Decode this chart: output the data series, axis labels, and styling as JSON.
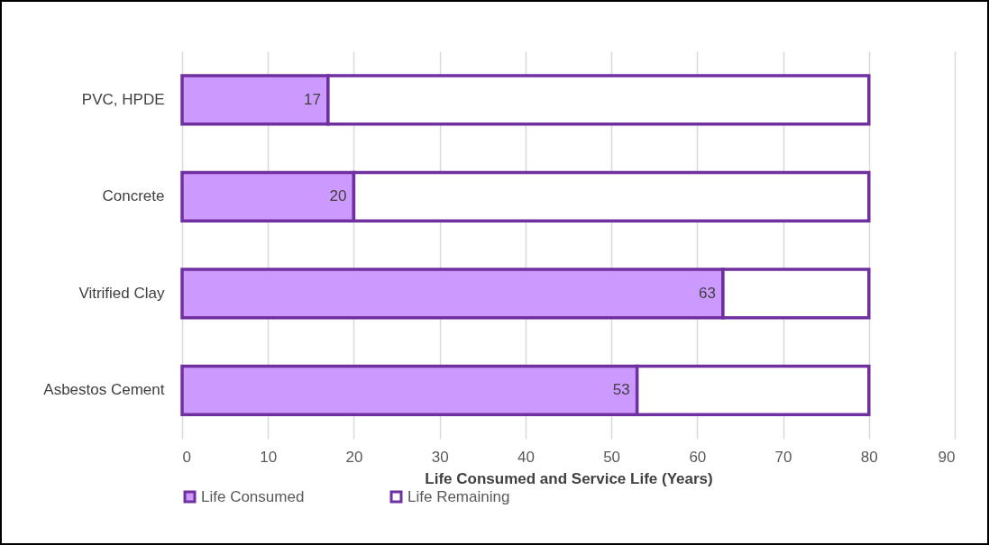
{
  "chart_data": {
    "type": "bar",
    "orientation": "horizontal",
    "stacked": true,
    "xlabel": "Life Consumed and Service Life (Years)",
    "categories": [
      "PVC, HPDE",
      "Concrete",
      "Vitrified Clay",
      "Asbestos Cement"
    ],
    "series": [
      {
        "name": "Life Consumed",
        "color": "#cc99ff",
        "values": [
          17,
          20,
          63,
          53
        ],
        "value_labels": [
          "17",
          "20",
          "63",
          "53"
        ]
      },
      {
        "name": "Life Remaining",
        "color": "#ffffff",
        "values": [
          63,
          60,
          17,
          27
        ]
      }
    ],
    "xlim": [
      0,
      90
    ],
    "xticks": [
      0,
      10,
      20,
      30,
      40,
      50,
      60,
      70,
      80,
      90
    ],
    "grid": "x",
    "legend": "bottom"
  }
}
